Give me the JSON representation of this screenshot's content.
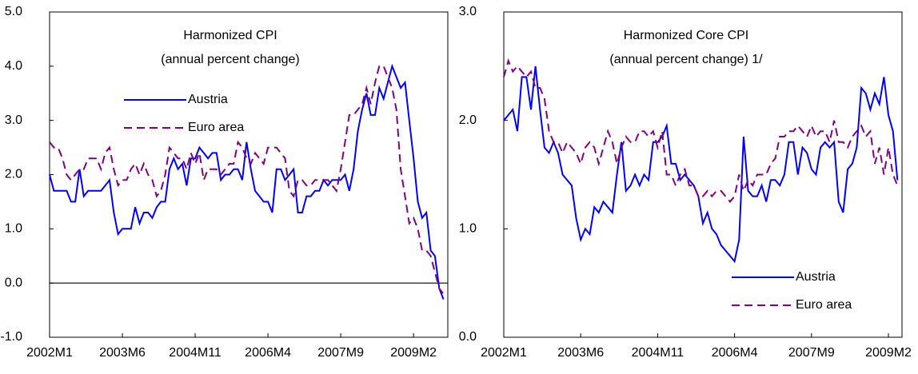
{
  "chart_data": [
    {
      "type": "line",
      "title": "Harmonized CPI",
      "subtitle": "(annual percent change)",
      "categories": [
        "2002M1",
        null,
        null,
        null,
        null,
        null,
        null,
        null,
        null,
        null,
        null,
        null,
        null,
        null,
        null,
        null,
        null,
        "2003M6",
        null,
        null,
        null,
        null,
        null,
        null,
        null,
        null,
        null,
        null,
        null,
        null,
        null,
        null,
        null,
        null,
        "2004M11",
        null,
        null,
        null,
        null,
        null,
        null,
        null,
        null,
        null,
        null,
        null,
        null,
        null,
        null,
        null,
        null,
        "2006M4",
        null,
        null,
        null,
        null,
        null,
        null,
        null,
        null,
        null,
        null,
        null,
        null,
        null,
        null,
        null,
        null,
        "2007M9",
        null,
        null,
        null,
        null,
        null,
        null,
        null,
        null,
        null,
        null,
        null,
        null,
        null,
        null,
        null,
        null,
        "2009M2",
        null,
        null,
        null,
        null,
        null,
        null,
        null
      ],
      "series": [
        {
          "name": "Austria",
          "color": "#0000ff",
          "dash": false,
          "values": [
            2.0,
            1.7,
            1.7,
            1.7,
            1.7,
            1.5,
            1.5,
            2.1,
            1.6,
            1.7,
            1.7,
            1.7,
            1.7,
            1.8,
            1.9,
            1.3,
            0.9,
            1.0,
            1.0,
            1.0,
            1.4,
            1.1,
            1.3,
            1.3,
            1.2,
            1.4,
            1.5,
            1.5,
            2.1,
            2.3,
            2.1,
            2.2,
            1.8,
            2.3,
            2.3,
            2.5,
            2.4,
            2.3,
            2.4,
            2.4,
            1.9,
            2.0,
            2.0,
            2.1,
            2.1,
            1.9,
            2.6,
            2.1,
            1.7,
            1.6,
            1.5,
            1.5,
            1.3,
            2.1,
            2.1,
            1.9,
            2.0,
            2.1,
            1.3,
            1.3,
            1.6,
            1.6,
            1.7,
            1.7,
            1.9,
            1.8,
            1.9,
            1.9,
            1.9,
            2.0,
            1.7,
            2.1,
            2.8,
            3.2,
            3.5,
            3.1,
            3.1,
            3.6,
            3.4,
            3.7,
            4.0,
            3.8,
            3.6,
            3.7,
            3.0,
            2.3,
            1.5,
            1.2,
            1.3,
            0.6,
            0.5,
            -0.1,
            -0.3
          ]
        },
        {
          "name": "Euro area",
          "color": "#800080",
          "dash": true,
          "values": [
            2.6,
            2.5,
            2.5,
            2.3,
            2.0,
            1.9,
            2.0,
            2.1,
            2.1,
            2.3,
            2.3,
            2.3,
            2.1,
            2.4,
            2.5,
            2.1,
            1.8,
            1.9,
            1.9,
            2.1,
            2.2,
            2.0,
            2.2,
            2.0,
            1.9,
            1.6,
            1.7,
            2.0,
            2.5,
            2.4,
            2.3,
            2.3,
            2.1,
            2.4,
            2.2,
            2.4,
            1.9,
            2.1,
            2.1,
            2.1,
            2.0,
            2.1,
            2.2,
            2.2,
            2.6,
            2.5,
            2.3,
            2.2,
            2.4,
            2.3,
            2.2,
            2.5,
            2.5,
            2.5,
            2.4,
            2.3,
            1.7,
            1.6,
            1.9,
            1.9,
            1.8,
            1.8,
            1.9,
            1.9,
            1.9,
            1.9,
            1.8,
            1.7,
            2.1,
            2.6,
            3.1,
            3.1,
            3.2,
            3.3,
            3.6,
            3.3,
            3.7,
            4.0,
            4.0,
            3.8,
            3.6,
            3.2,
            2.1,
            1.6,
            1.1,
            1.2,
            1.0,
            0.6,
            0.6,
            0.5,
            0.2,
            -0.1,
            -0.2
          ]
        }
      ],
      "ylim": [
        -1,
        5
      ],
      "yticks": [
        {
          "value": -1,
          "label": "-1.0"
        },
        {
          "value": 0,
          "label": "0.0"
        },
        {
          "value": 1,
          "label": "1.0"
        },
        {
          "value": 2,
          "label": "2.0"
        },
        {
          "value": 3,
          "label": "3.0"
        },
        {
          "value": 4,
          "label": "4.0"
        },
        {
          "value": 5,
          "label": "5.0"
        }
      ],
      "zero_line": true
    },
    {
      "type": "line",
      "title": "Harmonized Core CPI",
      "subtitle": "(annual percent change) 1/",
      "categories": [
        "2002M1",
        null,
        null,
        null,
        null,
        null,
        null,
        null,
        null,
        null,
        null,
        null,
        null,
        null,
        null,
        null,
        null,
        "2003M6",
        null,
        null,
        null,
        null,
        null,
        null,
        null,
        null,
        null,
        null,
        null,
        null,
        null,
        null,
        null,
        null,
        "2004M11",
        null,
        null,
        null,
        null,
        null,
        null,
        null,
        null,
        null,
        null,
        null,
        null,
        null,
        null,
        null,
        null,
        "2006M4",
        null,
        null,
        null,
        null,
        null,
        null,
        null,
        null,
        null,
        null,
        null,
        null,
        null,
        null,
        null,
        null,
        "2007M9",
        null,
        null,
        null,
        null,
        null,
        null,
        null,
        null,
        null,
        null,
        null,
        null,
        null,
        null,
        null,
        null,
        "2009M2",
        null,
        null
      ],
      "series": [
        {
          "name": "Austria",
          "color": "#0000ff",
          "dash": false,
          "values": [
            2.0,
            2.05,
            2.1,
            1.9,
            2.4,
            2.4,
            2.1,
            2.5,
            2.1,
            1.75,
            1.7,
            1.8,
            1.7,
            1.5,
            1.45,
            1.4,
            1.1,
            0.9,
            1.0,
            0.95,
            1.2,
            1.15,
            1.25,
            1.2,
            1.15,
            1.5,
            1.8,
            1.35,
            1.4,
            1.5,
            1.4,
            1.5,
            1.45,
            1.8,
            1.8,
            1.85,
            1.95,
            1.6,
            1.6,
            1.45,
            1.5,
            1.45,
            1.4,
            1.3,
            1.05,
            1.15,
            1.0,
            0.95,
            0.85,
            0.8,
            0.75,
            0.7,
            0.9,
            1.85,
            1.35,
            1.3,
            1.3,
            1.4,
            1.25,
            1.45,
            1.45,
            1.4,
            1.5,
            1.8,
            1.8,
            1.5,
            1.75,
            1.7,
            1.55,
            1.5,
            1.75,
            1.8,
            1.75,
            1.8,
            1.25,
            1.15,
            1.55,
            1.6,
            1.75,
            2.3,
            2.25,
            2.1,
            2.25,
            2.15,
            2.4,
            2.05,
            1.9,
            1.45
          ]
        },
        {
          "name": "Euro area",
          "color": "#800080",
          "dash": true,
          "values": [
            2.4,
            2.55,
            2.45,
            2.5,
            2.45,
            2.4,
            2.45,
            2.3,
            2.3,
            2.2,
            1.9,
            1.8,
            1.8,
            1.7,
            1.8,
            1.75,
            1.7,
            1.6,
            1.75,
            1.8,
            1.75,
            1.6,
            1.75,
            1.9,
            1.8,
            1.6,
            1.75,
            1.85,
            1.8,
            1.8,
            1.9,
            1.9,
            1.85,
            1.9,
            1.75,
            1.9,
            1.5,
            1.5,
            1.4,
            1.5,
            1.55,
            1.4,
            1.4,
            1.3,
            1.3,
            1.35,
            1.3,
            1.35,
            1.35,
            1.3,
            1.25,
            1.3,
            1.5,
            1.35,
            1.45,
            1.4,
            1.5,
            1.5,
            1.5,
            1.6,
            1.65,
            1.85,
            1.85,
            1.9,
            1.9,
            1.95,
            1.9,
            1.85,
            1.95,
            1.85,
            1.9,
            1.9,
            1.8,
            2.0,
            1.8,
            1.8,
            1.75,
            1.85,
            1.9,
            1.95,
            1.85,
            1.9,
            1.6,
            1.75,
            1.5,
            1.75,
            1.5,
            1.4
          ]
        }
      ],
      "ylim": [
        0,
        3
      ],
      "yticks": [
        {
          "value": 0,
          "label": "0.0"
        },
        {
          "value": 1,
          "label": "1.0"
        },
        {
          "value": 2,
          "label": "2.0"
        },
        {
          "value": 3,
          "label": "3.0"
        }
      ],
      "zero_line": false
    }
  ]
}
